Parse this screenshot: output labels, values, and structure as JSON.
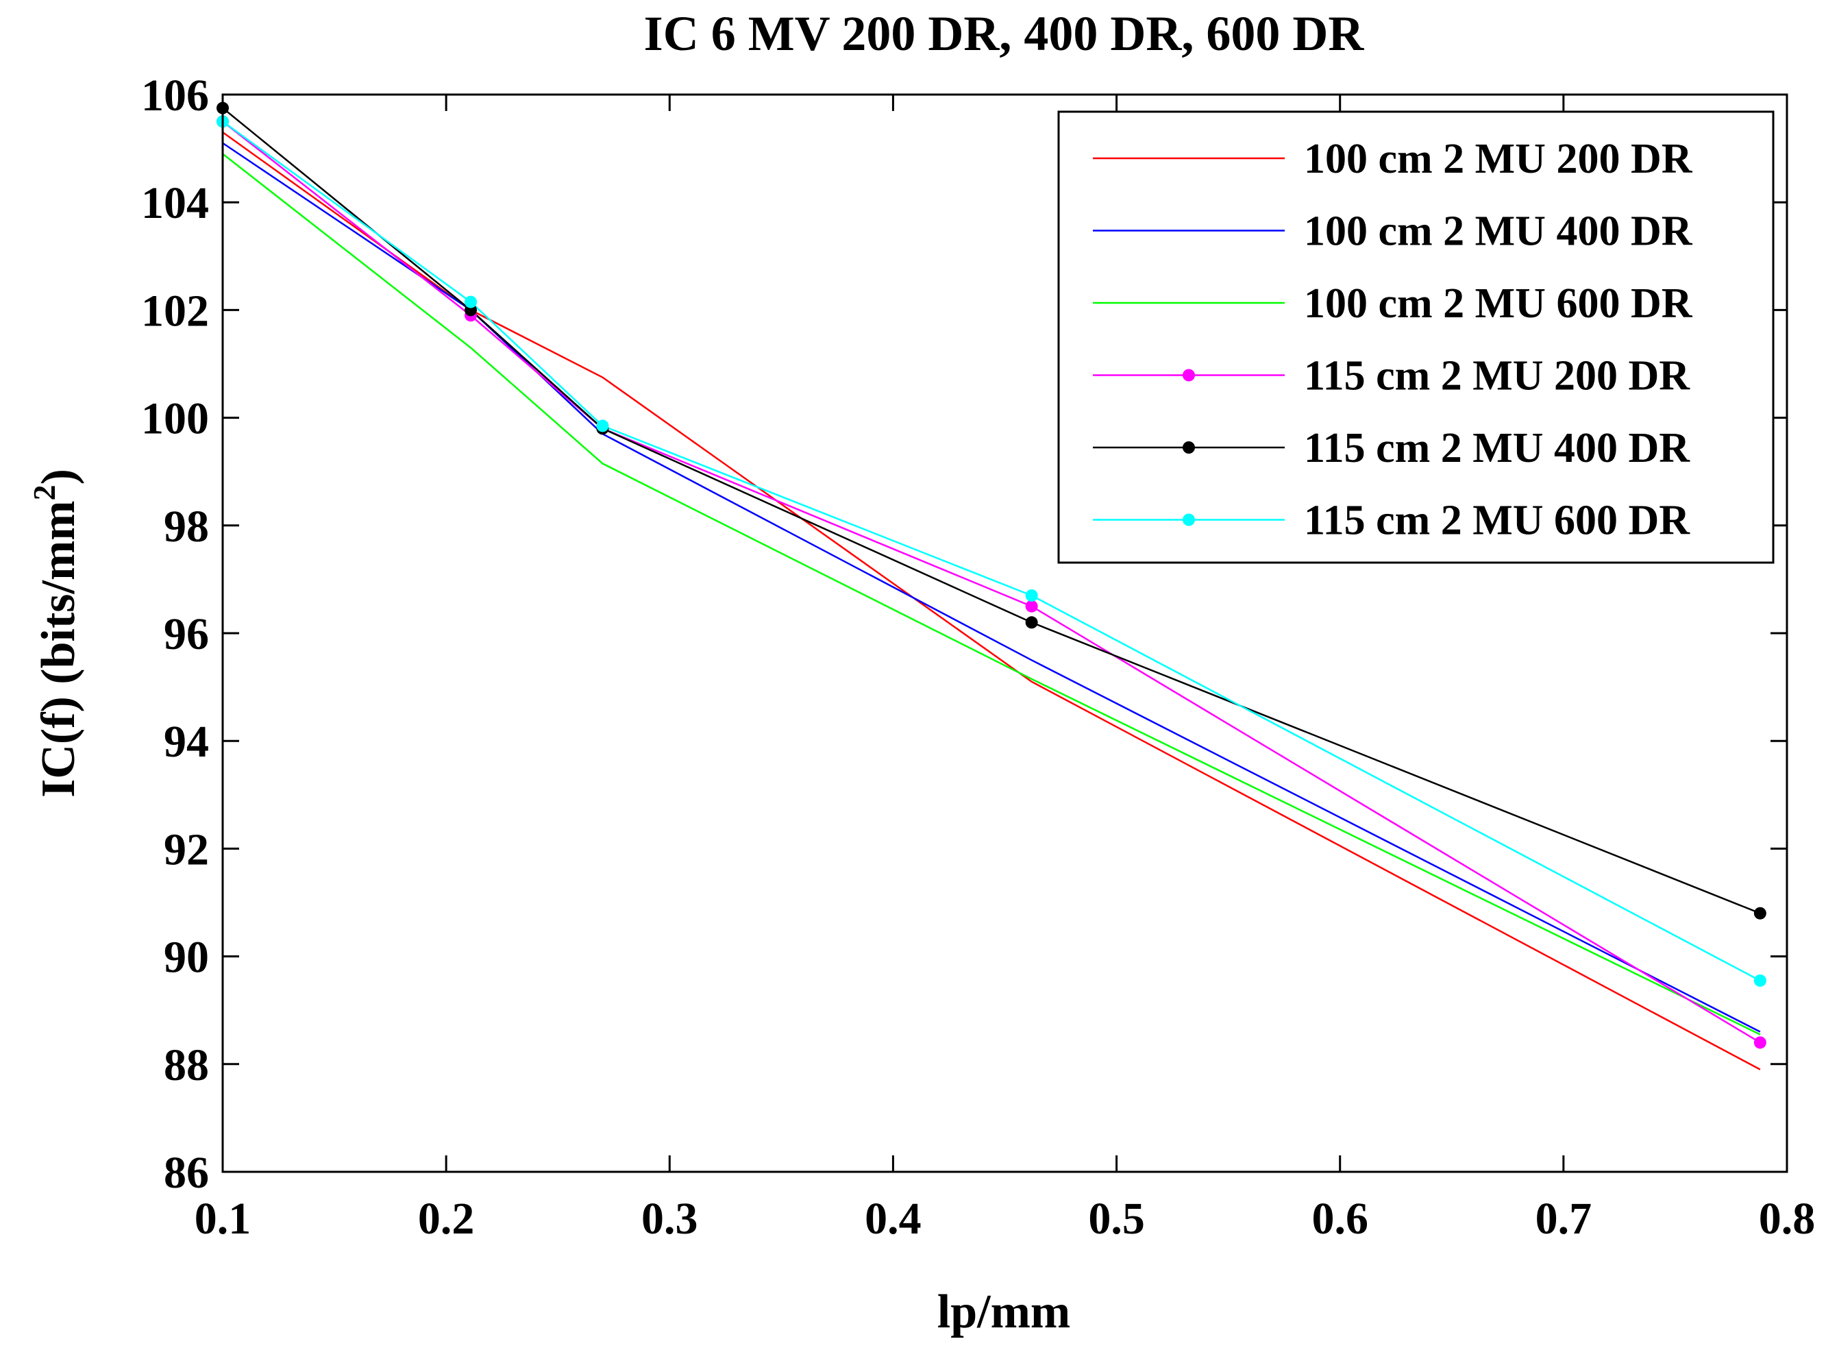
{
  "chart_data": {
    "type": "line",
    "title": "IC 6 MV 200 DR, 400 DR, 600 DR",
    "xlabel": "lp/mm",
    "ylabel": "IC(f) (bits/mm",
    "ylabel_superscript": "2",
    "ylabel_close": ")",
    "xlim": [
      0.1,
      0.8
    ],
    "ylim": [
      86,
      106
    ],
    "xticks": [
      0.1,
      0.2,
      0.3,
      0.4,
      0.5,
      0.6,
      0.7,
      0.8
    ],
    "xtick_labels": [
      "0.1",
      "0.2",
      "0.3",
      "0.4",
      "0.5",
      "0.6",
      "0.7",
      "0.8"
    ],
    "yticks": [
      86,
      88,
      90,
      92,
      94,
      96,
      98,
      100,
      102,
      104,
      106
    ],
    "ytick_labels": [
      "86",
      "88",
      "90",
      "92",
      "94",
      "96",
      "98",
      "100",
      "102",
      "104",
      "106"
    ],
    "grid": false,
    "legend_position": "top-right",
    "x": [
      0.1,
      0.211,
      0.27,
      0.462,
      0.788
    ],
    "series": [
      {
        "name": "100 cm 2 MU 200 DR",
        "color": "#ff0000",
        "marker": false,
        "values": [
          105.3,
          102.0,
          100.75,
          95.1,
          87.9
        ]
      },
      {
        "name": "100 cm 2 MU 400 DR",
        "color": "#0000ff",
        "marker": false,
        "values": [
          105.1,
          102.0,
          99.7,
          95.5,
          88.6
        ]
      },
      {
        "name": "100 cm 2 MU 600 DR",
        "color": "#00ff00",
        "marker": false,
        "values": [
          104.9,
          101.3,
          99.15,
          95.15,
          88.55
        ]
      },
      {
        "name": "115 cm 2 MU 200 DR",
        "color": "#ff00ff",
        "marker": true,
        "values": [
          105.5,
          101.9,
          99.8,
          96.5,
          88.4
        ]
      },
      {
        "name": "115 cm 2 MU 400 DR",
        "color": "#000000",
        "marker": true,
        "values": [
          105.75,
          102.0,
          99.8,
          96.2,
          90.8
        ]
      },
      {
        "name": "115 cm 2 MU 600 DR",
        "color": "#00ffff",
        "marker": true,
        "values": [
          105.5,
          102.15,
          99.85,
          96.7,
          89.55
        ]
      }
    ]
  }
}
